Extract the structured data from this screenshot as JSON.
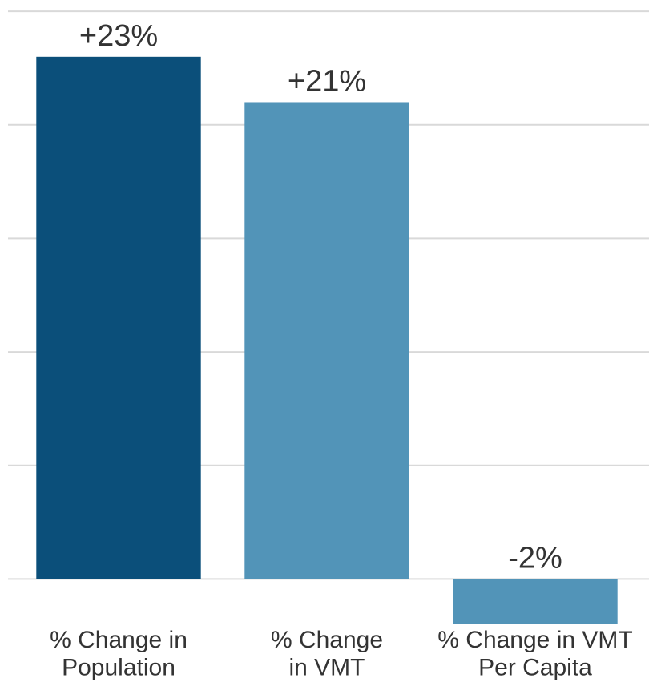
{
  "chart_data": {
    "type": "bar",
    "categories": [
      "% Change in\nPopulation",
      "% Change\nin VMT",
      "% Change in VMT\nPer Capita"
    ],
    "values": [
      23,
      21,
      -2
    ],
    "value_labels": [
      "+23%",
      "+21%",
      "-2%"
    ],
    "colors": [
      "#0b4f7a",
      "#5294b8",
      "#5294b8"
    ],
    "ylim": [
      -2,
      25.5
    ],
    "yticks": [
      0,
      5,
      10,
      15,
      20,
      25
    ],
    "grid": true
  }
}
